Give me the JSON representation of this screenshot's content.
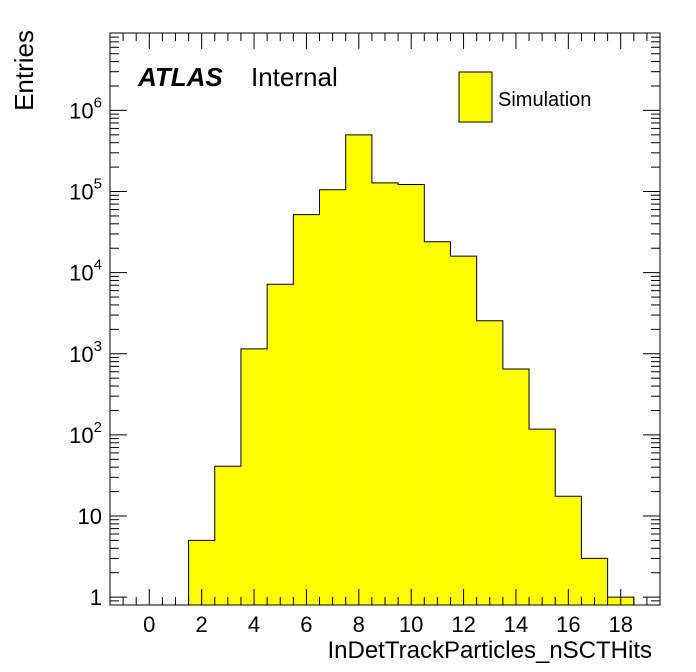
{
  "chart_data": {
    "type": "bar",
    "subtype": "histogram",
    "title": "",
    "xlabel": "InDetTrackParticles_nSCTHits",
    "ylabel": "Entries",
    "xlim": [
      -1.5,
      19.5
    ],
    "ylim": [
      0.8,
      9000000
    ],
    "yscale": "log",
    "grid": false,
    "legend_position": "top-right",
    "bar_color": "#ffff00",
    "edge_color": "#000000",
    "bin_width": 1,
    "bins": [
      {
        "x_low": 1.5,
        "x_high": 2.5,
        "value": 5
      },
      {
        "x_low": 2.5,
        "x_high": 3.5,
        "value": 41
      },
      {
        "x_low": 3.5,
        "x_high": 4.5,
        "value": 1150
      },
      {
        "x_low": 4.5,
        "x_high": 5.5,
        "value": 7200
      },
      {
        "x_low": 5.5,
        "x_high": 6.5,
        "value": 52000
      },
      {
        "x_low": 6.5,
        "x_high": 7.5,
        "value": 105000
      },
      {
        "x_low": 7.5,
        "x_high": 8.5,
        "value": 500000
      },
      {
        "x_low": 8.5,
        "x_high": 9.5,
        "value": 128000
      },
      {
        "x_low": 9.5,
        "x_high": 10.5,
        "value": 122000
      },
      {
        "x_low": 10.5,
        "x_high": 11.5,
        "value": 24000
      },
      {
        "x_low": 11.5,
        "x_high": 12.5,
        "value": 16000
      },
      {
        "x_low": 12.5,
        "x_high": 13.5,
        "value": 2550
      },
      {
        "x_low": 13.5,
        "x_high": 14.5,
        "value": 650
      },
      {
        "x_low": 14.5,
        "x_high": 15.5,
        "value": 118
      },
      {
        "x_low": 15.5,
        "x_high": 16.5,
        "value": 17.5
      },
      {
        "x_low": 16.5,
        "x_high": 17.5,
        "value": 3
      },
      {
        "x_low": 17.5,
        "x_high": 18.5,
        "value": 1
      }
    ],
    "x_ticks": [
      {
        "value": 0,
        "label": "0"
      },
      {
        "value": 2,
        "label": "2"
      },
      {
        "value": 4,
        "label": "4"
      },
      {
        "value": 6,
        "label": "6"
      },
      {
        "value": 8,
        "label": "8"
      },
      {
        "value": 10,
        "label": "10"
      },
      {
        "value": 12,
        "label": "12"
      },
      {
        "value": 14,
        "label": "14"
      },
      {
        "value": 16,
        "label": "16"
      },
      {
        "value": 18,
        "label": "18"
      }
    ],
    "y_ticks": [
      {
        "value": 1,
        "base": "1",
        "exp": ""
      },
      {
        "value": 10,
        "base": "10",
        "exp": ""
      },
      {
        "value": 100,
        "base": "10",
        "exp": "2"
      },
      {
        "value": 1000,
        "base": "10",
        "exp": "3"
      },
      {
        "value": 10000,
        "base": "10",
        "exp": "4"
      },
      {
        "value": 100000,
        "base": "10",
        "exp": "5"
      },
      {
        "value": 1000000,
        "base": "10",
        "exp": "6"
      }
    ],
    "legend": [
      {
        "label": "Simulation",
        "color": "#ffff00"
      }
    ],
    "annotations": {
      "experiment": "ATLAS",
      "status": "Internal"
    }
  }
}
